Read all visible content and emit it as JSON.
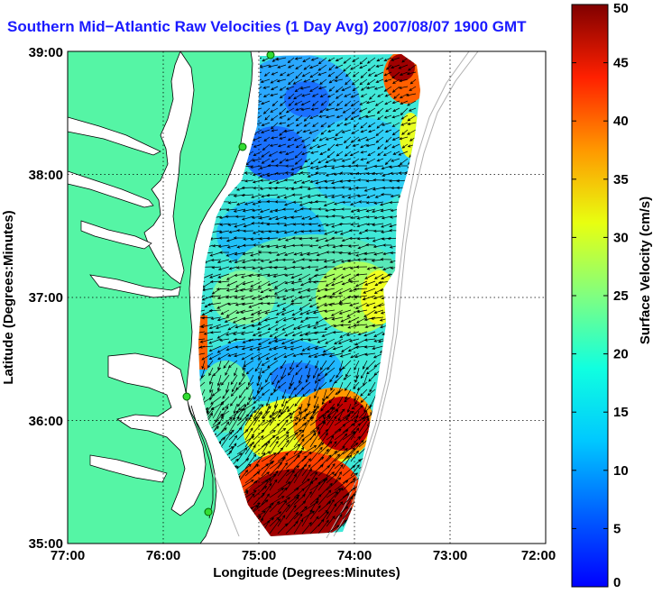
{
  "title": "Southern Mid−Atlantic Raw Velocities (1 Day Avg) 2007/08/07 1900 GMT",
  "xlabel": "Longitude (Degrees:Minutes)",
  "ylabel": "Latitude (Degrees:Minutes)",
  "x_ticks": [
    "77:00",
    "76:00",
    "75:00",
    "74:00",
    "73:00",
    "72:00"
  ],
  "y_ticks": [
    "39:00",
    "38:00",
    "37:00",
    "36:00",
    "35:00"
  ],
  "colorbar": {
    "label": "Surface Velocity (cm/s)",
    "min": 0,
    "max": 50,
    "ticks": [
      "0",
      "5",
      "10",
      "15",
      "20",
      "25",
      "30",
      "35",
      "40",
      "45",
      "50"
    ]
  },
  "colors": {
    "land": "#55f5a5",
    "title": "#1a1aff"
  },
  "map_extent": {
    "lon": [
      -77,
      -72
    ],
    "lat": [
      35,
      39
    ]
  }
}
